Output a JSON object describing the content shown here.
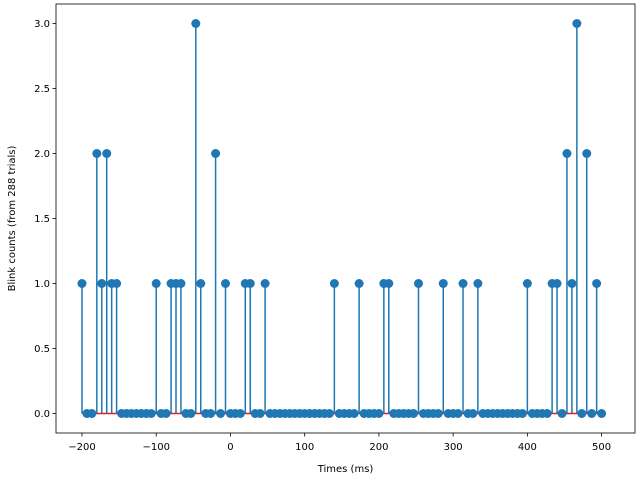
{
  "chart_data": {
    "type": "stem",
    "title": "",
    "xlabel": "Times (ms)",
    "ylabel": "Blink counts (from 288 trials)",
    "xlim": [
      -235,
      545
    ],
    "ylim": [
      -0.15,
      3.15
    ],
    "x_ticks": [
      -200,
      -100,
      0,
      100,
      200,
      300,
      400,
      500
    ],
    "x_tick_labels": [
      "−200",
      "−100",
      "0",
      "100",
      "200",
      "300",
      "400",
      "500"
    ],
    "y_ticks": [
      0.0,
      0.5,
      1.0,
      1.5,
      2.0,
      2.5,
      3.0
    ],
    "y_tick_labels": [
      "0.0",
      "0.5",
      "1.0",
      "1.5",
      "2.0",
      "2.5",
      "3.0"
    ],
    "grid": false,
    "legend": null,
    "x_start": -200,
    "x_step": 6.6667,
    "values": [
      1,
      0,
      0,
      2,
      1,
      2,
      1,
      1,
      0,
      0,
      0,
      0,
      0,
      0,
      0,
      1,
      0,
      0,
      1,
      1,
      1,
      0,
      0,
      3,
      1,
      0,
      0,
      2,
      0,
      1,
      0,
      0,
      0,
      1,
      1,
      0,
      0,
      1,
      0,
      0,
      0,
      0,
      0,
      0,
      0,
      0,
      0,
      0,
      0,
      0,
      0,
      1,
      0,
      0,
      0,
      0,
      1,
      0,
      0,
      0,
      0,
      1,
      1,
      0,
      0,
      0,
      0,
      0,
      1,
      0,
      0,
      0,
      0,
      1,
      0,
      0,
      0,
      1,
      0,
      0,
      1,
      0,
      0,
      0,
      0,
      0,
      0,
      0,
      0,
      0,
      1,
      0,
      0,
      0,
      0,
      1,
      1,
      0,
      2,
      1,
      3,
      0,
      2,
      0,
      1,
      0
    ],
    "colors": {
      "stem": "#1f77b4",
      "marker": "#1f77b4",
      "baseline": "#d62728"
    }
  }
}
